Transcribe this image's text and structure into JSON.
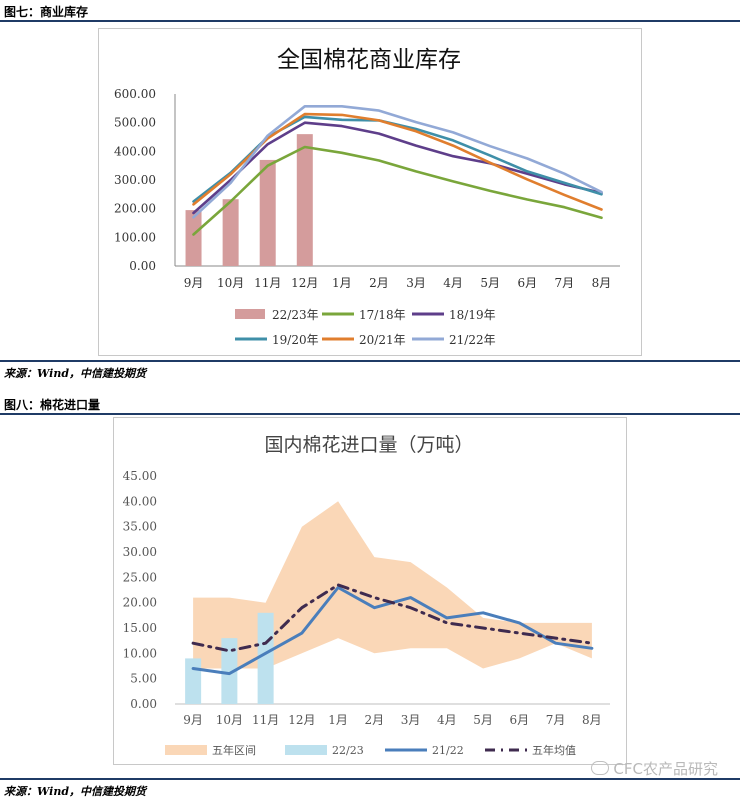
{
  "figure7": {
    "label": "图七：商业库存",
    "source": "来源：Wind，中信建投期货",
    "chart_data": {
      "type": "bar+line",
      "title": "全国棉花商业库存",
      "categories": [
        "9月",
        "10月",
        "11月",
        "12月",
        "1月",
        "2月",
        "3月",
        "4月",
        "5月",
        "6月",
        "7月",
        "8月"
      ],
      "ylim": [
        0,
        600
      ],
      "yticks": [
        "0.00",
        "100.00",
        "200.00",
        "300.00",
        "400.00",
        "500.00",
        "600.00"
      ],
      "legend_position": "bottom",
      "bars": {
        "name": "22/23年",
        "color": "#d49c9c",
        "values": [
          195,
          233,
          370,
          460,
          null,
          null,
          null,
          null,
          null,
          null,
          null,
          null
        ]
      },
      "series": [
        {
          "name": "17/18年",
          "color": "#7aa63b",
          "values": [
            110,
            225,
            350,
            415,
            395,
            368,
            330,
            295,
            262,
            232,
            205,
            168
          ]
        },
        {
          "name": "18/19年",
          "color": "#5e3e8a",
          "values": [
            185,
            300,
            425,
            500,
            488,
            462,
            420,
            383,
            358,
            322,
            285,
            255
          ]
        },
        {
          "name": "19/20年",
          "color": "#3f8fa8",
          "values": [
            225,
            325,
            450,
            520,
            510,
            508,
            478,
            438,
            385,
            330,
            290,
            250
          ]
        },
        {
          "name": "20/21年",
          "color": "#e07e2e",
          "values": [
            215,
            320,
            445,
            530,
            527,
            508,
            470,
            420,
            360,
            302,
            248,
            197
          ]
        },
        {
          "name": "21/22年",
          "color": "#92a9d6",
          "values": [
            170,
            290,
            455,
            557,
            557,
            542,
            502,
            466,
            418,
            375,
            322,
            258
          ]
        }
      ]
    }
  },
  "figure8": {
    "label": "图八：棉花进口量",
    "source": "来源：Wind，中信建投期货",
    "watermark": "CFC农产品研究",
    "chart_data": {
      "type": "area+bar+line",
      "title": "国内棉花进口量（万吨）",
      "categories": [
        "9月",
        "10月",
        "11月",
        "12月",
        "1月",
        "2月",
        "3月",
        "4月",
        "5月",
        "6月",
        "7月",
        "8月"
      ],
      "ylim": [
        0,
        45
      ],
      "yticks": [
        "0.00",
        "5.00",
        "10.00",
        "15.00",
        "20.00",
        "25.00",
        "30.00",
        "35.00",
        "40.00",
        "45.00"
      ],
      "legend_position": "bottom",
      "band": {
        "name": "五年区间",
        "color": "#fad7b7",
        "upper": [
          21,
          21,
          20,
          35,
          40,
          29,
          28,
          23,
          17,
          16,
          16,
          16
        ],
        "lower": [
          7,
          7,
          7,
          10,
          13,
          10,
          11,
          11,
          7,
          9,
          12,
          9
        ]
      },
      "bars": {
        "name": "22/23",
        "color": "#bde1ee",
        "values": [
          9,
          13,
          18,
          null,
          null,
          null,
          null,
          null,
          null,
          null,
          null,
          null
        ]
      },
      "series": [
        {
          "name": "21/22",
          "color": "#4a7ebb",
          "style": "solid",
          "values": [
            7,
            6,
            10,
            14,
            23,
            19,
            21,
            17,
            18,
            16,
            12,
            11
          ]
        },
        {
          "name": "五年均值",
          "color": "#3f2b4f",
          "style": "dashdot",
          "values": [
            12,
            10.5,
            12,
            19,
            23.5,
            21,
            19,
            16,
            15,
            14,
            13,
            12
          ]
        }
      ]
    }
  }
}
